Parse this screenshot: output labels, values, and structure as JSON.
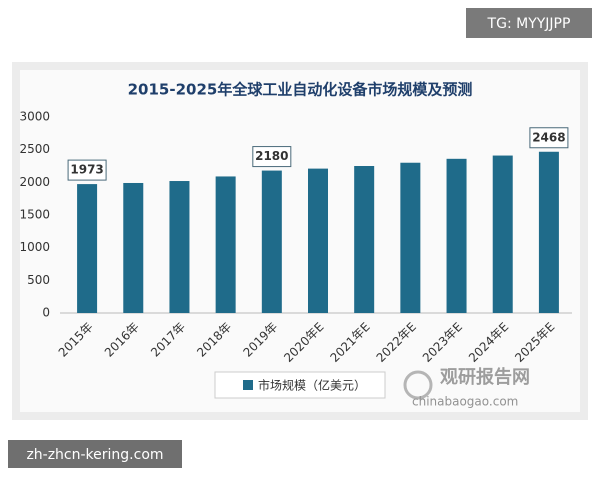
{
  "chart_data": {
    "type": "bar",
    "title": "2015-2025年全球工业自动化设备市场规模及预测",
    "categories": [
      "2015年",
      "2016年",
      "2017年",
      "2018年",
      "2019年",
      "2020年E",
      "2021年E",
      "2022年E",
      "2023年E",
      "2024年E",
      "2025年E"
    ],
    "series": [
      {
        "name": "市场规模（亿美元）",
        "color": "#1f6b8a",
        "values": [
          1973,
          1990,
          2020,
          2090,
          2180,
          2210,
          2250,
          2300,
          2360,
          2410,
          2468
        ],
        "value_labels": [
          "1973",
          null,
          null,
          null,
          "2180",
          null,
          null,
          null,
          null,
          null,
          "2468"
        ]
      }
    ],
    "ylim": [
      0,
      3000
    ],
    "yticks": [
      0,
      500,
      1000,
      1500,
      2000,
      2500,
      3000
    ],
    "grid": false
  },
  "watermarks": {
    "tg": "TG: MYYJJPP",
    "site": "zh-zhcn-kering.com",
    "logo": "观研报告网",
    "logo_url": "chinabaogao.com"
  }
}
